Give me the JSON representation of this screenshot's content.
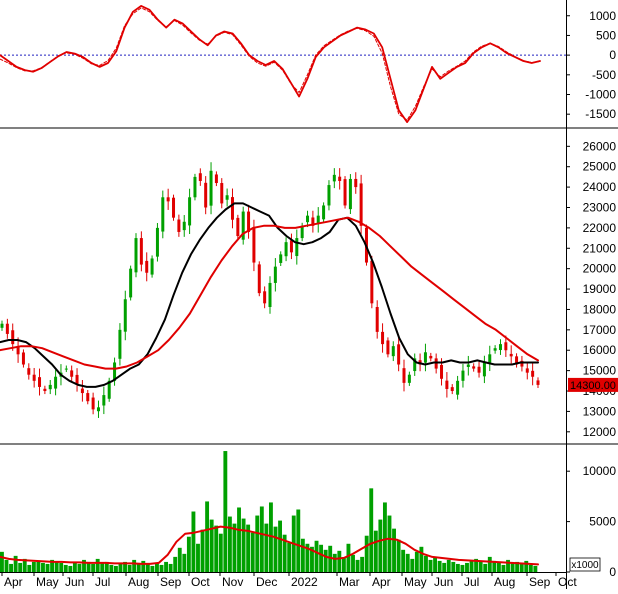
{
  "chart_data": {
    "type": "line",
    "panels": [
      {
        "id": "oscillator",
        "ylim": [
          -1800,
          1400
        ],
        "yticks": [
          1000,
          500,
          0,
          -500,
          -1000,
          -1500
        ],
        "zero_line": 0,
        "series": [
          {
            "color": "#e00000",
            "style": "solid",
            "values": [
              0,
              -150,
              -300,
              -380,
              -420,
              -330,
              -180,
              -30,
              80,
              40,
              -50,
              -200,
              -300,
              -200,
              100,
              700,
              1100,
              1250,
              1150,
              900,
              700,
              900,
              800,
              600,
              400,
              250,
              500,
              600,
              550,
              300,
              0,
              -150,
              -250,
              -150,
              -350,
              -700,
              -1050,
              -600,
              -50,
              200,
              350,
              500,
              600,
              700,
              650,
              550,
              200,
              -600,
              -1400,
              -1700,
              -1400,
              -850,
              -300,
              -600,
              -450,
              -300,
              -200,
              50,
              200,
              300,
              200,
              50,
              -50,
              -150,
              -200,
              -150
            ]
          },
          {
            "color": "#e00000",
            "style": "dashed",
            "values": [
              -100,
              -200,
              -320,
              -400,
              -400,
              -320,
              -170,
              -20,
              60,
              20,
              -80,
              -220,
              -260,
              -140,
              180,
              750,
              1050,
              1200,
              1100,
              880,
              720,
              880,
              760,
              560,
              380,
              280,
              480,
              580,
              520,
              260,
              -30,
              -200,
              -280,
              -180,
              -380,
              -720,
              -950,
              -500,
              0,
              240,
              380,
              520,
              620,
              680,
              620,
              480,
              50,
              -800,
              -1500,
              -1650,
              -1300,
              -800,
              -350,
              -550,
              -400,
              -280,
              -150,
              80,
              230,
              300,
              220,
              80,
              -40,
              -140,
              -190,
              -160
            ]
          }
        ],
        "yaxis_tick_labels": [
          "1000",
          "500",
          "0",
          "-500",
          "-1000",
          "-1500"
        ]
      },
      {
        "id": "price",
        "ylim": [
          11500,
          26800
        ],
        "yticks": [
          12000,
          13000,
          14000,
          15000,
          16000,
          17000,
          18000,
          19000,
          20000,
          21000,
          22000,
          23000,
          24000,
          25000,
          26000
        ],
        "candles": {
          "up_color": "#00a000",
          "down_color": "#e00000"
        },
        "closes": [
          17300,
          16800,
          16300,
          15800,
          15300,
          14800,
          14500,
          14200,
          14000,
          14300,
          14700,
          14900,
          15100,
          14700,
          14300,
          13900,
          13500,
          13100,
          13200,
          13800,
          14500,
          15400,
          17000,
          18500,
          20000,
          21500,
          20200,
          19800,
          20500,
          22000,
          23500,
          23300,
          22500,
          21800,
          22300,
          23500,
          24500,
          24300,
          23000,
          24800,
          24200,
          23200,
          23600,
          22400,
          21600,
          22800,
          21800,
          20300,
          18800,
          18300,
          19300,
          20100,
          20700,
          21300,
          20800,
          21500,
          22100,
          22600,
          22100,
          22600,
          23100,
          24100,
          24600,
          24300,
          23100,
          24400,
          24000,
          22100,
          20300,
          18300,
          16900,
          16300,
          15800,
          16200,
          15300,
          14400,
          14800,
          15600,
          15300,
          15900,
          15600,
          15100,
          14600,
          14100,
          14000,
          14500,
          15000,
          15300,
          15100,
          14900,
          15400,
          15800,
          16100,
          16300,
          16000,
          15700,
          15300,
          15200,
          14900,
          14700,
          14300
        ],
        "lines": [
          {
            "name": "MA20",
            "color": "#000000",
            "values": [
              16400,
              16500,
              16500,
              16400,
              16100,
              15700,
              15300,
              14800,
              14500,
              14300,
              14200,
              14200,
              14300,
              14500,
              14800,
              15100,
              15300,
              15800,
              16600,
              17500,
              18700,
              19800,
              20700,
              21400,
              22000,
              22500,
              22900,
              23200,
              23200,
              23000,
              22800,
              22600,
              22000,
              21600,
              21300,
              21200,
              21300,
              21500,
              21800,
              22400,
              22500,
              22100,
              21300,
              20300,
              19100,
              17800,
              16600,
              15800,
              15400,
              15300,
              15400,
              15400,
              15500,
              15400,
              15400,
              15500,
              15400,
              15300,
              15300,
              15300,
              15400,
              15400,
              15400
            ]
          },
          {
            "name": "MA50",
            "color": "#e00000",
            "values": [
              16000,
              16100,
              16200,
              16200,
              16100,
              15900,
              15700,
              15500,
              15300,
              15200,
              15100,
              15100,
              15200,
              15400,
              15700,
              16000,
              16500,
              17100,
              17800,
              18700,
              19600,
              20400,
              21100,
              21700,
              22000,
              22100,
              22100,
              22000,
              22000,
              22100,
              22200,
              22300,
              22400,
              22500,
              22300,
              22000,
              21600,
              21100,
              20600,
              20100,
              19700,
              19300,
              18900,
              18500,
              18100,
              17700,
              17300,
              17000,
              16600,
              16200,
              15800,
              15500
            ]
          }
        ],
        "last_price_label": "14300.00"
      },
      {
        "id": "volume",
        "ylim": [
          0,
          12500
        ],
        "yticks": [
          10000,
          5000,
          0
        ],
        "unit_label": "x1000",
        "bar_color": "#00a000",
        "volumes": [
          2000,
          1200,
          800,
          1600,
          900,
          1300,
          700,
          1000,
          1100,
          900,
          800,
          1200,
          1000,
          900,
          700,
          600,
          900,
          800,
          1200,
          1000,
          800,
          1300,
          900,
          1000,
          700,
          600,
          800,
          1000,
          700,
          1200,
          900,
          1100,
          800,
          600,
          900,
          700,
          1000,
          800,
          1500,
          2400,
          1800,
          3500,
          6000,
          2800,
          4200,
          7000,
          5200,
          4600,
          3800,
          12000,
          5500,
          4800,
          6400,
          5300,
          4700,
          3900,
          5600,
          6500,
          4800,
          6900,
          4500,
          5100,
          3700,
          2900,
          5600,
          6200,
          3300,
          2800,
          2500,
          3100,
          2700,
          2200,
          2600,
          1800,
          2100,
          1400,
          2800,
          1700,
          1200,
          1500,
          3600,
          8300,
          4100,
          5200,
          6900,
          5600,
          4300,
          3200,
          2200,
          1800,
          1300,
          2000,
          2500,
          1600,
          1200,
          1500,
          1100,
          900,
          1200,
          1000,
          800,
          700,
          900,
          1100,
          1300,
          1000,
          800,
          1500,
          1100,
          900,
          700,
          1200,
          900,
          1000,
          800,
          1100,
          700,
          600
        ],
        "line": {
          "color": "#e00000",
          "values": [
            1500,
            1300,
            1200,
            1150,
            1100,
            1050,
            1000,
            1000,
            950,
            950,
            900,
            900,
            900,
            850,
            850,
            850,
            800,
            800,
            900,
            1700,
            3000,
            3800,
            3900,
            4100,
            4300,
            4500,
            4400,
            4200,
            4100,
            3900,
            3700,
            3500,
            3200,
            2900,
            2600,
            2300,
            1900,
            1500,
            1300,
            1400,
            1800,
            2300,
            2800,
            3100,
            3300,
            3200,
            2800,
            2200,
            1800,
            1500,
            1400,
            1300,
            1200,
            1150,
            1100,
            1050,
            1000,
            950,
            900,
            850,
            800,
            750
          ]
        }
      }
    ],
    "x_tick_labels": [
      "Apr",
      "May",
      "Jun",
      "Jul",
      "Aug",
      "Sep",
      "Oct",
      "Nov",
      "Dec",
      "2022",
      "Mar",
      "Apr",
      "May",
      "Jun",
      "Jul",
      "Aug",
      "Sep",
      "Oct"
    ]
  }
}
